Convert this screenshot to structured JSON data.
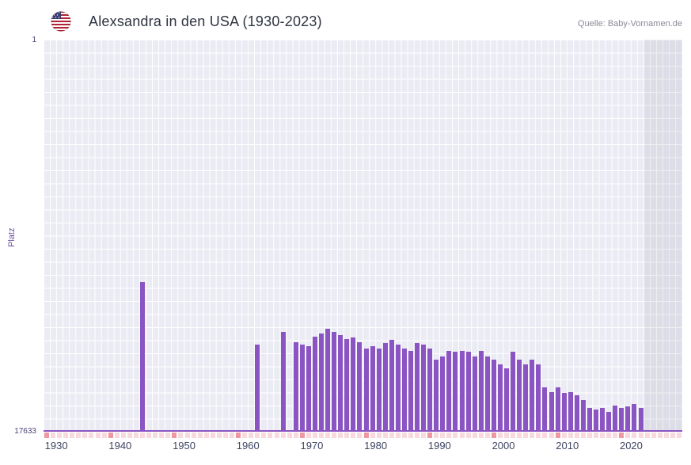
{
  "header": {
    "title": "Alexsandra in den USA (1930-2023)",
    "source": "Quelle: Baby-Vornamen.de",
    "flag_icon": "us-flag-icon"
  },
  "axes": {
    "y_label": "Platz",
    "y_top_tick": "1",
    "y_bottom_tick": "17633"
  },
  "chart_data": {
    "type": "bar",
    "title": "Alexsandra in den USA (1930-2023)",
    "xlabel": "",
    "ylabel": "Platz",
    "y_min": 1,
    "y_max": 17633,
    "y_inverted": true,
    "x_domain": [
      1928,
      2028
    ],
    "x_ticks": [
      1930,
      1940,
      1950,
      1960,
      1970,
      1980,
      1990,
      2000,
      2010,
      2020
    ],
    "bar_color": "#8a55c2",
    "plot_background": "#ebebf4",
    "no_data_region": {
      "from": 2022,
      "to": 2028
    },
    "marker_strip": {
      "light_color": "#f8d9de",
      "dark_color": "#ef98a0",
      "dark_start": 1928,
      "dark_every": 10
    },
    "points": [
      {
        "year": 1943,
        "rank": 10900
      },
      {
        "year": 1961,
        "rank": 13700
      },
      {
        "year": 1965,
        "rank": 13150
      },
      {
        "year": 1967,
        "rank": 13600
      },
      {
        "year": 1968,
        "rank": 13700
      },
      {
        "year": 1969,
        "rank": 13800
      },
      {
        "year": 1970,
        "rank": 13350
      },
      {
        "year": 1971,
        "rank": 13200
      },
      {
        "year": 1972,
        "rank": 13000
      },
      {
        "year": 1973,
        "rank": 13150
      },
      {
        "year": 1974,
        "rank": 13300
      },
      {
        "year": 1975,
        "rank": 13450
      },
      {
        "year": 1976,
        "rank": 13400
      },
      {
        "year": 1977,
        "rank": 13600
      },
      {
        "year": 1978,
        "rank": 13900
      },
      {
        "year": 1979,
        "rank": 13800
      },
      {
        "year": 1980,
        "rank": 13900
      },
      {
        "year": 1981,
        "rank": 13650
      },
      {
        "year": 1982,
        "rank": 13500
      },
      {
        "year": 1983,
        "rank": 13700
      },
      {
        "year": 1984,
        "rank": 13900
      },
      {
        "year": 1985,
        "rank": 14000
      },
      {
        "year": 1986,
        "rank": 13650
      },
      {
        "year": 1987,
        "rank": 13700
      },
      {
        "year": 1988,
        "rank": 13900
      },
      {
        "year": 1989,
        "rank": 14400
      },
      {
        "year": 1990,
        "rank": 14250
      },
      {
        "year": 1991,
        "rank": 14000
      },
      {
        "year": 1992,
        "rank": 14050
      },
      {
        "year": 1993,
        "rank": 14000
      },
      {
        "year": 1994,
        "rank": 14050
      },
      {
        "year": 1995,
        "rank": 14250
      },
      {
        "year": 1996,
        "rank": 14000
      },
      {
        "year": 1997,
        "rank": 14250
      },
      {
        "year": 1998,
        "rank": 14400
      },
      {
        "year": 1999,
        "rank": 14600
      },
      {
        "year": 2000,
        "rank": 14800
      },
      {
        "year": 2001,
        "rank": 14050
      },
      {
        "year": 2002,
        "rank": 14400
      },
      {
        "year": 2003,
        "rank": 14600
      },
      {
        "year": 2004,
        "rank": 14400
      },
      {
        "year": 2005,
        "rank": 14600
      },
      {
        "year": 2006,
        "rank": 15650
      },
      {
        "year": 2007,
        "rank": 15850
      },
      {
        "year": 2008,
        "rank": 15650
      },
      {
        "year": 2009,
        "rank": 15900
      },
      {
        "year": 2010,
        "rank": 15850
      },
      {
        "year": 2011,
        "rank": 16000
      },
      {
        "year": 2012,
        "rank": 16200
      },
      {
        "year": 2013,
        "rank": 16550
      },
      {
        "year": 2014,
        "rank": 16650
      },
      {
        "year": 2015,
        "rank": 16550
      },
      {
        "year": 2016,
        "rank": 16750
      },
      {
        "year": 2017,
        "rank": 16450
      },
      {
        "year": 2018,
        "rank": 16550
      },
      {
        "year": 2019,
        "rank": 16500
      },
      {
        "year": 2020,
        "rank": 16400
      },
      {
        "year": 2021,
        "rank": 16550
      }
    ]
  }
}
